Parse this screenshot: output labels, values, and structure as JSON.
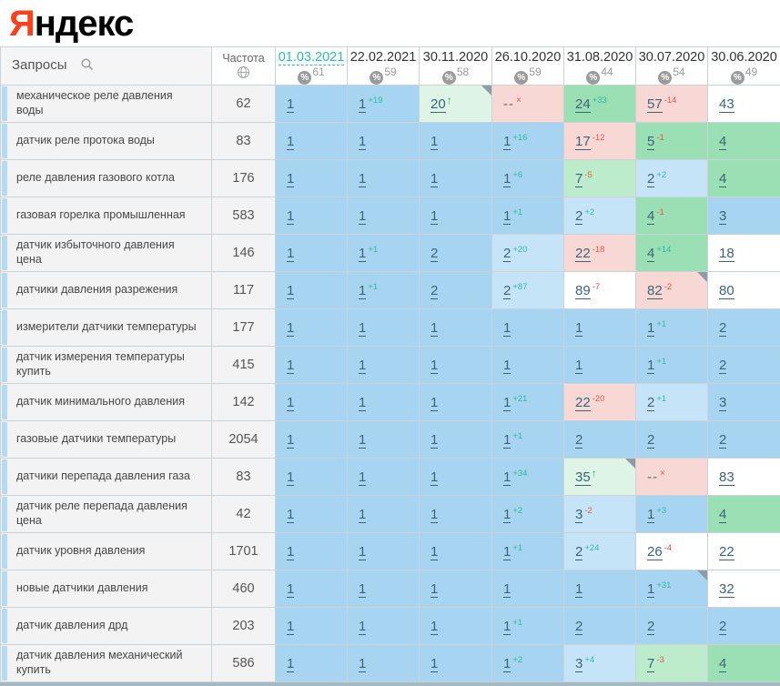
{
  "logo": {
    "part1": "Я",
    "part2": "ндекс"
  },
  "colors": {
    "blue": "#a7d5f1",
    "blue2": "#c6e4f8",
    "green": "#9bdfb5",
    "green2": "#bdeccd",
    "green3": "#def4e6",
    "pink": "#f8d8d4",
    "white": "#ffffff",
    "accent_teal": "#2dbda8",
    "change_up": "#2fb8a3",
    "change_down": "#e2574c",
    "arrow_up": "#2aae60",
    "position_link": "#3e6374",
    "logo_red": "#fc3f1d"
  },
  "table": {
    "queries_header": "Запросы",
    "frequency_header": "Частота",
    "columns": [
      {
        "date": "01.03.2021",
        "pct": "61",
        "active": true
      },
      {
        "date": "22.02.2021",
        "pct": "59",
        "active": false
      },
      {
        "date": "30.11.2020",
        "pct": "58",
        "active": false
      },
      {
        "date": "26.10.2020",
        "pct": "59",
        "active": false
      },
      {
        "date": "31.08.2020",
        "pct": "44",
        "active": false
      },
      {
        "date": "30.07.2020",
        "pct": "54",
        "active": false
      },
      {
        "date": "30.06.2020",
        "pct": "49",
        "active": false
      }
    ],
    "rows": [
      {
        "query": "механическое реле давления воды",
        "frequency": "62",
        "cells": [
          {
            "pos": "1",
            "bg": "blue"
          },
          {
            "pos": "1",
            "sup": "+19",
            "supType": "up",
            "bg": "blue"
          },
          {
            "pos": "20",
            "sup": "↑",
            "supType": "return",
            "bg": "green3",
            "corner": true
          },
          {
            "pos": "--",
            "dash": true,
            "sup": "×",
            "supType": "out",
            "bg": "pink"
          },
          {
            "pos": "24",
            "sup": "+33",
            "supType": "up",
            "bg": "green"
          },
          {
            "pos": "57",
            "sup": "-14",
            "supType": "down",
            "bg": "pink"
          },
          {
            "pos": "43",
            "bg": "white"
          }
        ]
      },
      {
        "query": "датчик реле протока воды",
        "frequency": "83",
        "cells": [
          {
            "pos": "1",
            "bg": "blue"
          },
          {
            "pos": "1",
            "bg": "blue"
          },
          {
            "pos": "1",
            "bg": "blue"
          },
          {
            "pos": "1",
            "sup": "+16",
            "supType": "up",
            "bg": "blue"
          },
          {
            "pos": "17",
            "sup": "-12",
            "supType": "down",
            "bg": "pink"
          },
          {
            "pos": "5",
            "sup": "-1",
            "supType": "down",
            "bg": "green"
          },
          {
            "pos": "4",
            "bg": "green"
          }
        ]
      },
      {
        "query": "реле давления газового котла",
        "frequency": "176",
        "cells": [
          {
            "pos": "1",
            "bg": "blue"
          },
          {
            "pos": "1",
            "bg": "blue"
          },
          {
            "pos": "1",
            "bg": "blue"
          },
          {
            "pos": "1",
            "sup": "+6",
            "supType": "up",
            "bg": "blue"
          },
          {
            "pos": "7",
            "sup": "-5",
            "supType": "down",
            "bg": "green2"
          },
          {
            "pos": "2",
            "sup": "+2",
            "supType": "up",
            "bg": "blue2"
          },
          {
            "pos": "4",
            "bg": "green"
          }
        ]
      },
      {
        "query": "газовая горелка промышленная",
        "frequency": "583",
        "cells": [
          {
            "pos": "1",
            "bg": "blue"
          },
          {
            "pos": "1",
            "bg": "blue"
          },
          {
            "pos": "1",
            "bg": "blue"
          },
          {
            "pos": "1",
            "sup": "+1",
            "supType": "up",
            "bg": "blue"
          },
          {
            "pos": "2",
            "sup": "+2",
            "supType": "up",
            "bg": "blue2"
          },
          {
            "pos": "4",
            "sup": "-1",
            "supType": "down",
            "bg": "green"
          },
          {
            "pos": "3",
            "bg": "blue"
          }
        ]
      },
      {
        "query": "датчик избыточного давления цена",
        "frequency": "146",
        "cells": [
          {
            "pos": "1",
            "bg": "blue"
          },
          {
            "pos": "1",
            "sup": "+1",
            "supType": "up",
            "bg": "blue"
          },
          {
            "pos": "2",
            "bg": "blue"
          },
          {
            "pos": "2",
            "sup": "+20",
            "supType": "up",
            "bg": "blue2"
          },
          {
            "pos": "22",
            "sup": "-18",
            "supType": "down",
            "bg": "pink"
          },
          {
            "pos": "4",
            "sup": "+14",
            "supType": "up",
            "bg": "green"
          },
          {
            "pos": "18",
            "bg": "white"
          }
        ]
      },
      {
        "query": "датчики давления разрежения",
        "frequency": "117",
        "cells": [
          {
            "pos": "1",
            "bg": "blue"
          },
          {
            "pos": "1",
            "sup": "+1",
            "supType": "up",
            "bg": "blue"
          },
          {
            "pos": "2",
            "bg": "blue"
          },
          {
            "pos": "2",
            "sup": "+87",
            "supType": "up",
            "bg": "blue2"
          },
          {
            "pos": "89",
            "sup": "-7",
            "supType": "down",
            "bg": "white"
          },
          {
            "pos": "82",
            "sup": "-2",
            "supType": "down",
            "bg": "pink",
            "corner": true
          },
          {
            "pos": "80",
            "bg": "white"
          }
        ]
      },
      {
        "query": "измерители датчики температуры",
        "frequency": "177",
        "cells": [
          {
            "pos": "1",
            "bg": "blue"
          },
          {
            "pos": "1",
            "bg": "blue"
          },
          {
            "pos": "1",
            "bg": "blue"
          },
          {
            "pos": "1",
            "bg": "blue"
          },
          {
            "pos": "1",
            "bg": "blue"
          },
          {
            "pos": "1",
            "sup": "+1",
            "supType": "up",
            "bg": "blue"
          },
          {
            "pos": "2",
            "bg": "blue"
          }
        ]
      },
      {
        "query": "датчик измерения температуры купить",
        "frequency": "415",
        "cells": [
          {
            "pos": "1",
            "bg": "blue"
          },
          {
            "pos": "1",
            "bg": "blue"
          },
          {
            "pos": "1",
            "bg": "blue"
          },
          {
            "pos": "1",
            "bg": "blue"
          },
          {
            "pos": "1",
            "bg": "blue"
          },
          {
            "pos": "1",
            "sup": "+1",
            "supType": "up",
            "bg": "blue"
          },
          {
            "pos": "2",
            "bg": "blue"
          }
        ]
      },
      {
        "query": "датчик минимального давления",
        "frequency": "142",
        "cells": [
          {
            "pos": "1",
            "bg": "blue"
          },
          {
            "pos": "1",
            "bg": "blue"
          },
          {
            "pos": "1",
            "bg": "blue"
          },
          {
            "pos": "1",
            "sup": "+21",
            "supType": "up",
            "bg": "blue"
          },
          {
            "pos": "22",
            "sup": "-20",
            "supType": "down",
            "bg": "pink"
          },
          {
            "pos": "2",
            "sup": "+1",
            "supType": "up",
            "bg": "blue2"
          },
          {
            "pos": "3",
            "bg": "blue"
          }
        ]
      },
      {
        "query": "газовые датчики температуры",
        "frequency": "2054",
        "cells": [
          {
            "pos": "1",
            "bg": "blue"
          },
          {
            "pos": "1",
            "bg": "blue"
          },
          {
            "pos": "1",
            "bg": "blue"
          },
          {
            "pos": "1",
            "sup": "+1",
            "supType": "up",
            "bg": "blue"
          },
          {
            "pos": "2",
            "bg": "blue"
          },
          {
            "pos": "2",
            "bg": "blue"
          },
          {
            "pos": "2",
            "bg": "blue"
          }
        ]
      },
      {
        "query": "датчики перепада давления газа",
        "frequency": "83",
        "cells": [
          {
            "pos": "1",
            "bg": "blue"
          },
          {
            "pos": "1",
            "bg": "blue"
          },
          {
            "pos": "1",
            "bg": "blue"
          },
          {
            "pos": "1",
            "sup": "+34",
            "supType": "up",
            "bg": "blue"
          },
          {
            "pos": "35",
            "sup": "↑",
            "supType": "return",
            "bg": "green3",
            "corner": true
          },
          {
            "pos": "--",
            "dash": true,
            "sup": "×",
            "supType": "out",
            "bg": "pink"
          },
          {
            "pos": "83",
            "bg": "white"
          }
        ]
      },
      {
        "query": "датчик реле перепада давления цена",
        "frequency": "42",
        "cells": [
          {
            "pos": "1",
            "bg": "blue"
          },
          {
            "pos": "1",
            "bg": "blue"
          },
          {
            "pos": "1",
            "bg": "blue"
          },
          {
            "pos": "1",
            "sup": "+2",
            "supType": "up",
            "bg": "blue"
          },
          {
            "pos": "3",
            "sup": "-2",
            "supType": "down",
            "bg": "blue2"
          },
          {
            "pos": "1",
            "sup": "+3",
            "supType": "up",
            "bg": "blue"
          },
          {
            "pos": "4",
            "bg": "green"
          }
        ]
      },
      {
        "query": "датчик уровня давления",
        "frequency": "1701",
        "cells": [
          {
            "pos": "1",
            "bg": "blue"
          },
          {
            "pos": "1",
            "bg": "blue"
          },
          {
            "pos": "1",
            "bg": "blue"
          },
          {
            "pos": "1",
            "sup": "+1",
            "supType": "up",
            "bg": "blue"
          },
          {
            "pos": "2",
            "sup": "+24",
            "supType": "up",
            "bg": "blue2"
          },
          {
            "pos": "26",
            "sup": "-4",
            "supType": "down",
            "bg": "white"
          },
          {
            "pos": "22",
            "bg": "white"
          }
        ]
      },
      {
        "query": "новые датчики давления",
        "frequency": "460",
        "cells": [
          {
            "pos": "1",
            "bg": "blue"
          },
          {
            "pos": "1",
            "bg": "blue"
          },
          {
            "pos": "1",
            "bg": "blue"
          },
          {
            "pos": "1",
            "bg": "blue"
          },
          {
            "pos": "1",
            "bg": "blue"
          },
          {
            "pos": "1",
            "sup": "+31",
            "supType": "up",
            "bg": "blue",
            "corner": true
          },
          {
            "pos": "32",
            "bg": "white"
          }
        ]
      },
      {
        "query": "датчик давления дрд",
        "frequency": "203",
        "cells": [
          {
            "pos": "1",
            "bg": "blue"
          },
          {
            "pos": "1",
            "bg": "blue"
          },
          {
            "pos": "1",
            "bg": "blue"
          },
          {
            "pos": "1",
            "sup": "+1",
            "supType": "up",
            "bg": "blue"
          },
          {
            "pos": "2",
            "bg": "blue"
          },
          {
            "pos": "2",
            "bg": "blue"
          },
          {
            "pos": "2",
            "bg": "blue"
          }
        ]
      },
      {
        "query": "датчик давления механический купить",
        "frequency": "586",
        "cells": [
          {
            "pos": "1",
            "bg": "blue"
          },
          {
            "pos": "1",
            "bg": "blue"
          },
          {
            "pos": "1",
            "bg": "blue"
          },
          {
            "pos": "1",
            "sup": "+2",
            "supType": "up",
            "bg": "blue"
          },
          {
            "pos": "3",
            "sup": "+4",
            "supType": "up",
            "bg": "blue2"
          },
          {
            "pos": "7",
            "sup": "-3",
            "supType": "down",
            "bg": "green2"
          },
          {
            "pos": "4",
            "bg": "green"
          }
        ]
      }
    ]
  }
}
